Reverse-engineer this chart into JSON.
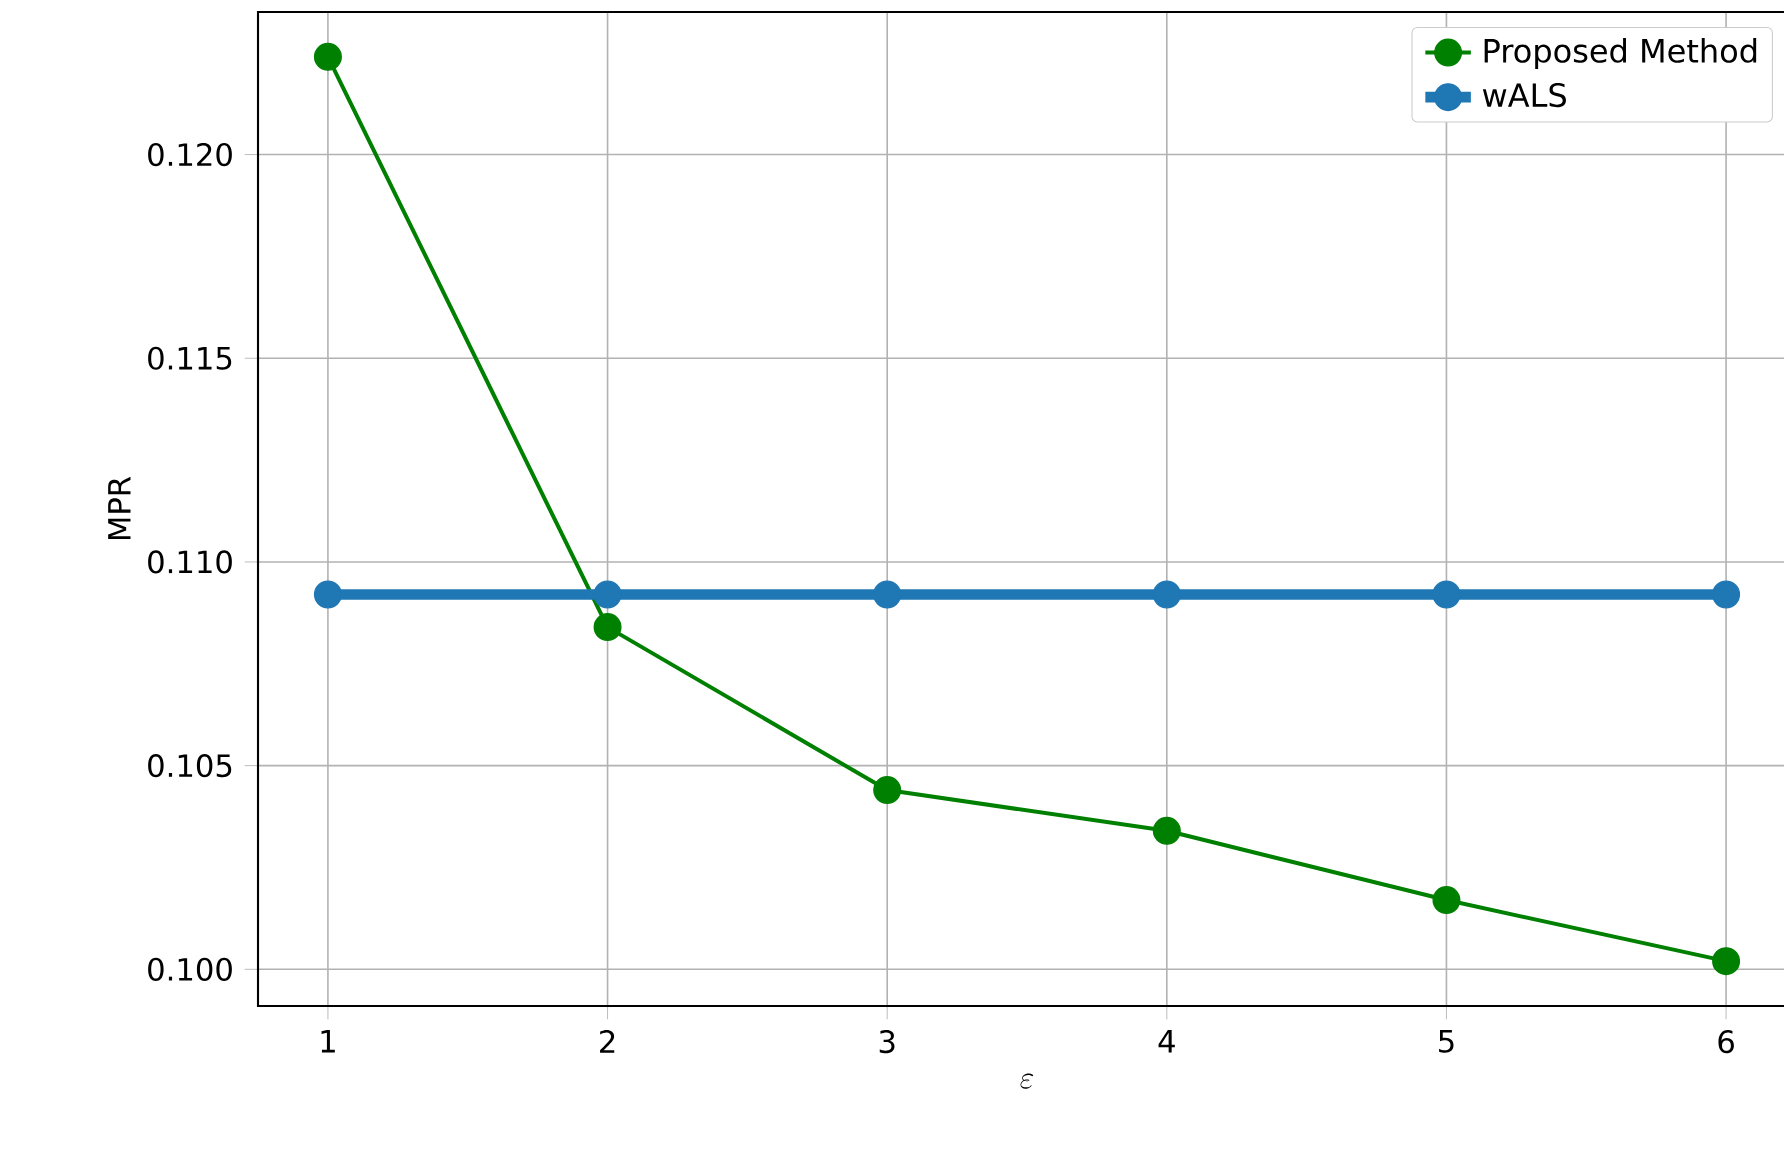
{
  "chart_data": {
    "type": "line",
    "xlabel": "\\varepsilon",
    "ylabel": "MPR",
    "x": [
      1,
      2,
      3,
      4,
      5,
      6
    ],
    "series": [
      {
        "name": "Proposed Method",
        "color": "#008000",
        "values": [
          0.1224,
          0.1084,
          0.1044,
          0.1034,
          0.1017,
          0.1002
        ]
      },
      {
        "name": "wALS",
        "color": "#1f77b4",
        "values": [
          0.1092,
          0.1092,
          0.1092,
          0.1092,
          0.1092,
          0.1092
        ]
      }
    ],
    "xlim": [
      0.75,
      6.25
    ],
    "ylim": [
      0.0991,
      0.1235
    ],
    "xticks": [
      1,
      2,
      3,
      4,
      5,
      6
    ],
    "yticks": [
      {
        "value": 0.1,
        "label": "0.100"
      },
      {
        "value": 0.105,
        "label": "0.105"
      },
      {
        "value": 0.11,
        "label": "0.110"
      },
      {
        "value": 0.115,
        "label": "0.115"
      },
      {
        "value": 0.12,
        "label": "0.120"
      }
    ],
    "grid": true,
    "legend": "top right",
    "marker": "circle",
    "line_style": "solid"
  }
}
